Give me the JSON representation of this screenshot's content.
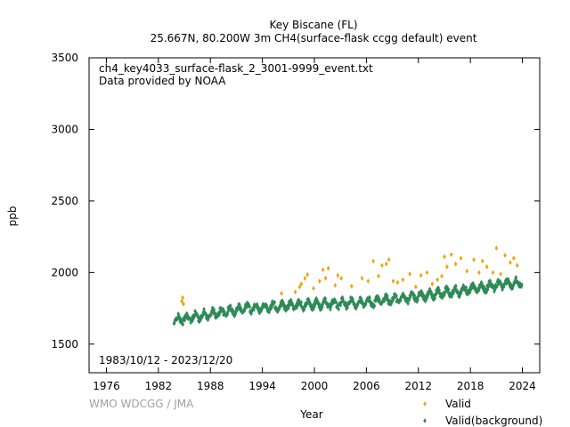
{
  "chart_data": {
    "type": "scatter",
    "title": "Key Biscane (FL)",
    "subtitle": "25.667N, 80.200W 3m    CH4(surface-flask ccgg default) event",
    "xlabel": "Year",
    "ylabel": "ppb",
    "xlim": [
      1974,
      2026
    ],
    "ylim": [
      1300,
      3500
    ],
    "x_ticks": [
      1976,
      1982,
      1988,
      1994,
      2000,
      2006,
      2012,
      2018,
      2024
    ],
    "y_ticks": [
      1500,
      2000,
      2500,
      3000,
      3500
    ],
    "annotations": {
      "filename": "ch4_key4033_surface-flask_2_3001-9999_event.txt",
      "provider": "Data provided by NOAA",
      "period": "1983/10/12 - 2023/12/20",
      "credit": "WMO WDCGG / JMA"
    },
    "legend_placement": "bottom-right",
    "grid": false,
    "series": [
      {
        "name": "Valid",
        "color": "#f0a000",
        "marker": "diamond",
        "x": [
          1984.7,
          1984.8,
          1984.9,
          1996.2,
          1997.8,
          1998.3,
          1998.5,
          1998.9,
          1999.2,
          1999.9,
          2000.6,
          2001.0,
          2001.3,
          2001.6,
          2002.4,
          2002.7,
          2003.1,
          2004.3,
          2005.5,
          2006.2,
          2006.8,
          2007.4,
          2007.8,
          2008.3,
          2008.6,
          2009.1,
          2009.6,
          2010.2,
          2011.0,
          2011.7,
          2012.3,
          2013.0,
          2013.6,
          2014.2,
          2014.7,
          2015.0,
          2015.3,
          2015.8,
          2016.3,
          2016.9,
          2017.6,
          2018.4,
          2019.0,
          2019.4,
          2019.9,
          2020.6,
          2021.0,
          2021.5,
          2022.0,
          2022.6,
          2023.0,
          2023.4
        ],
        "y": [
          1800,
          1825,
          1780,
          1855,
          1865,
          1900,
          1920,
          1960,
          1985,
          1890,
          1940,
          2020,
          1960,
          2030,
          1910,
          1980,
          1960,
          1905,
          1960,
          1940,
          2080,
          1975,
          2050,
          2060,
          2090,
          1940,
          1930,
          1950,
          1990,
          1900,
          1980,
          2000,
          1920,
          1950,
          1975,
          2110,
          2040,
          2125,
          2060,
          2100,
          2010,
          2090,
          2000,
          2080,
          2040,
          2000,
          2170,
          1990,
          2120,
          2070,
          2100,
          2050
        ]
      },
      {
        "name": "Valid(background)",
        "color": "#2e8b57",
        "marker": "diamond",
        "trend": {
          "start_year": 1983.8,
          "end_year": 2023.95,
          "anchor_years": [
            1983.8,
            1992,
            1999,
            2006,
            2007,
            2014,
            2020,
            2023.95
          ],
          "anchor_values": [
            1665,
            1750,
            1775,
            1790,
            1795,
            1850,
            1900,
            1935
          ],
          "seasonal_amplitude": 25,
          "noise": 18
        }
      }
    ]
  }
}
